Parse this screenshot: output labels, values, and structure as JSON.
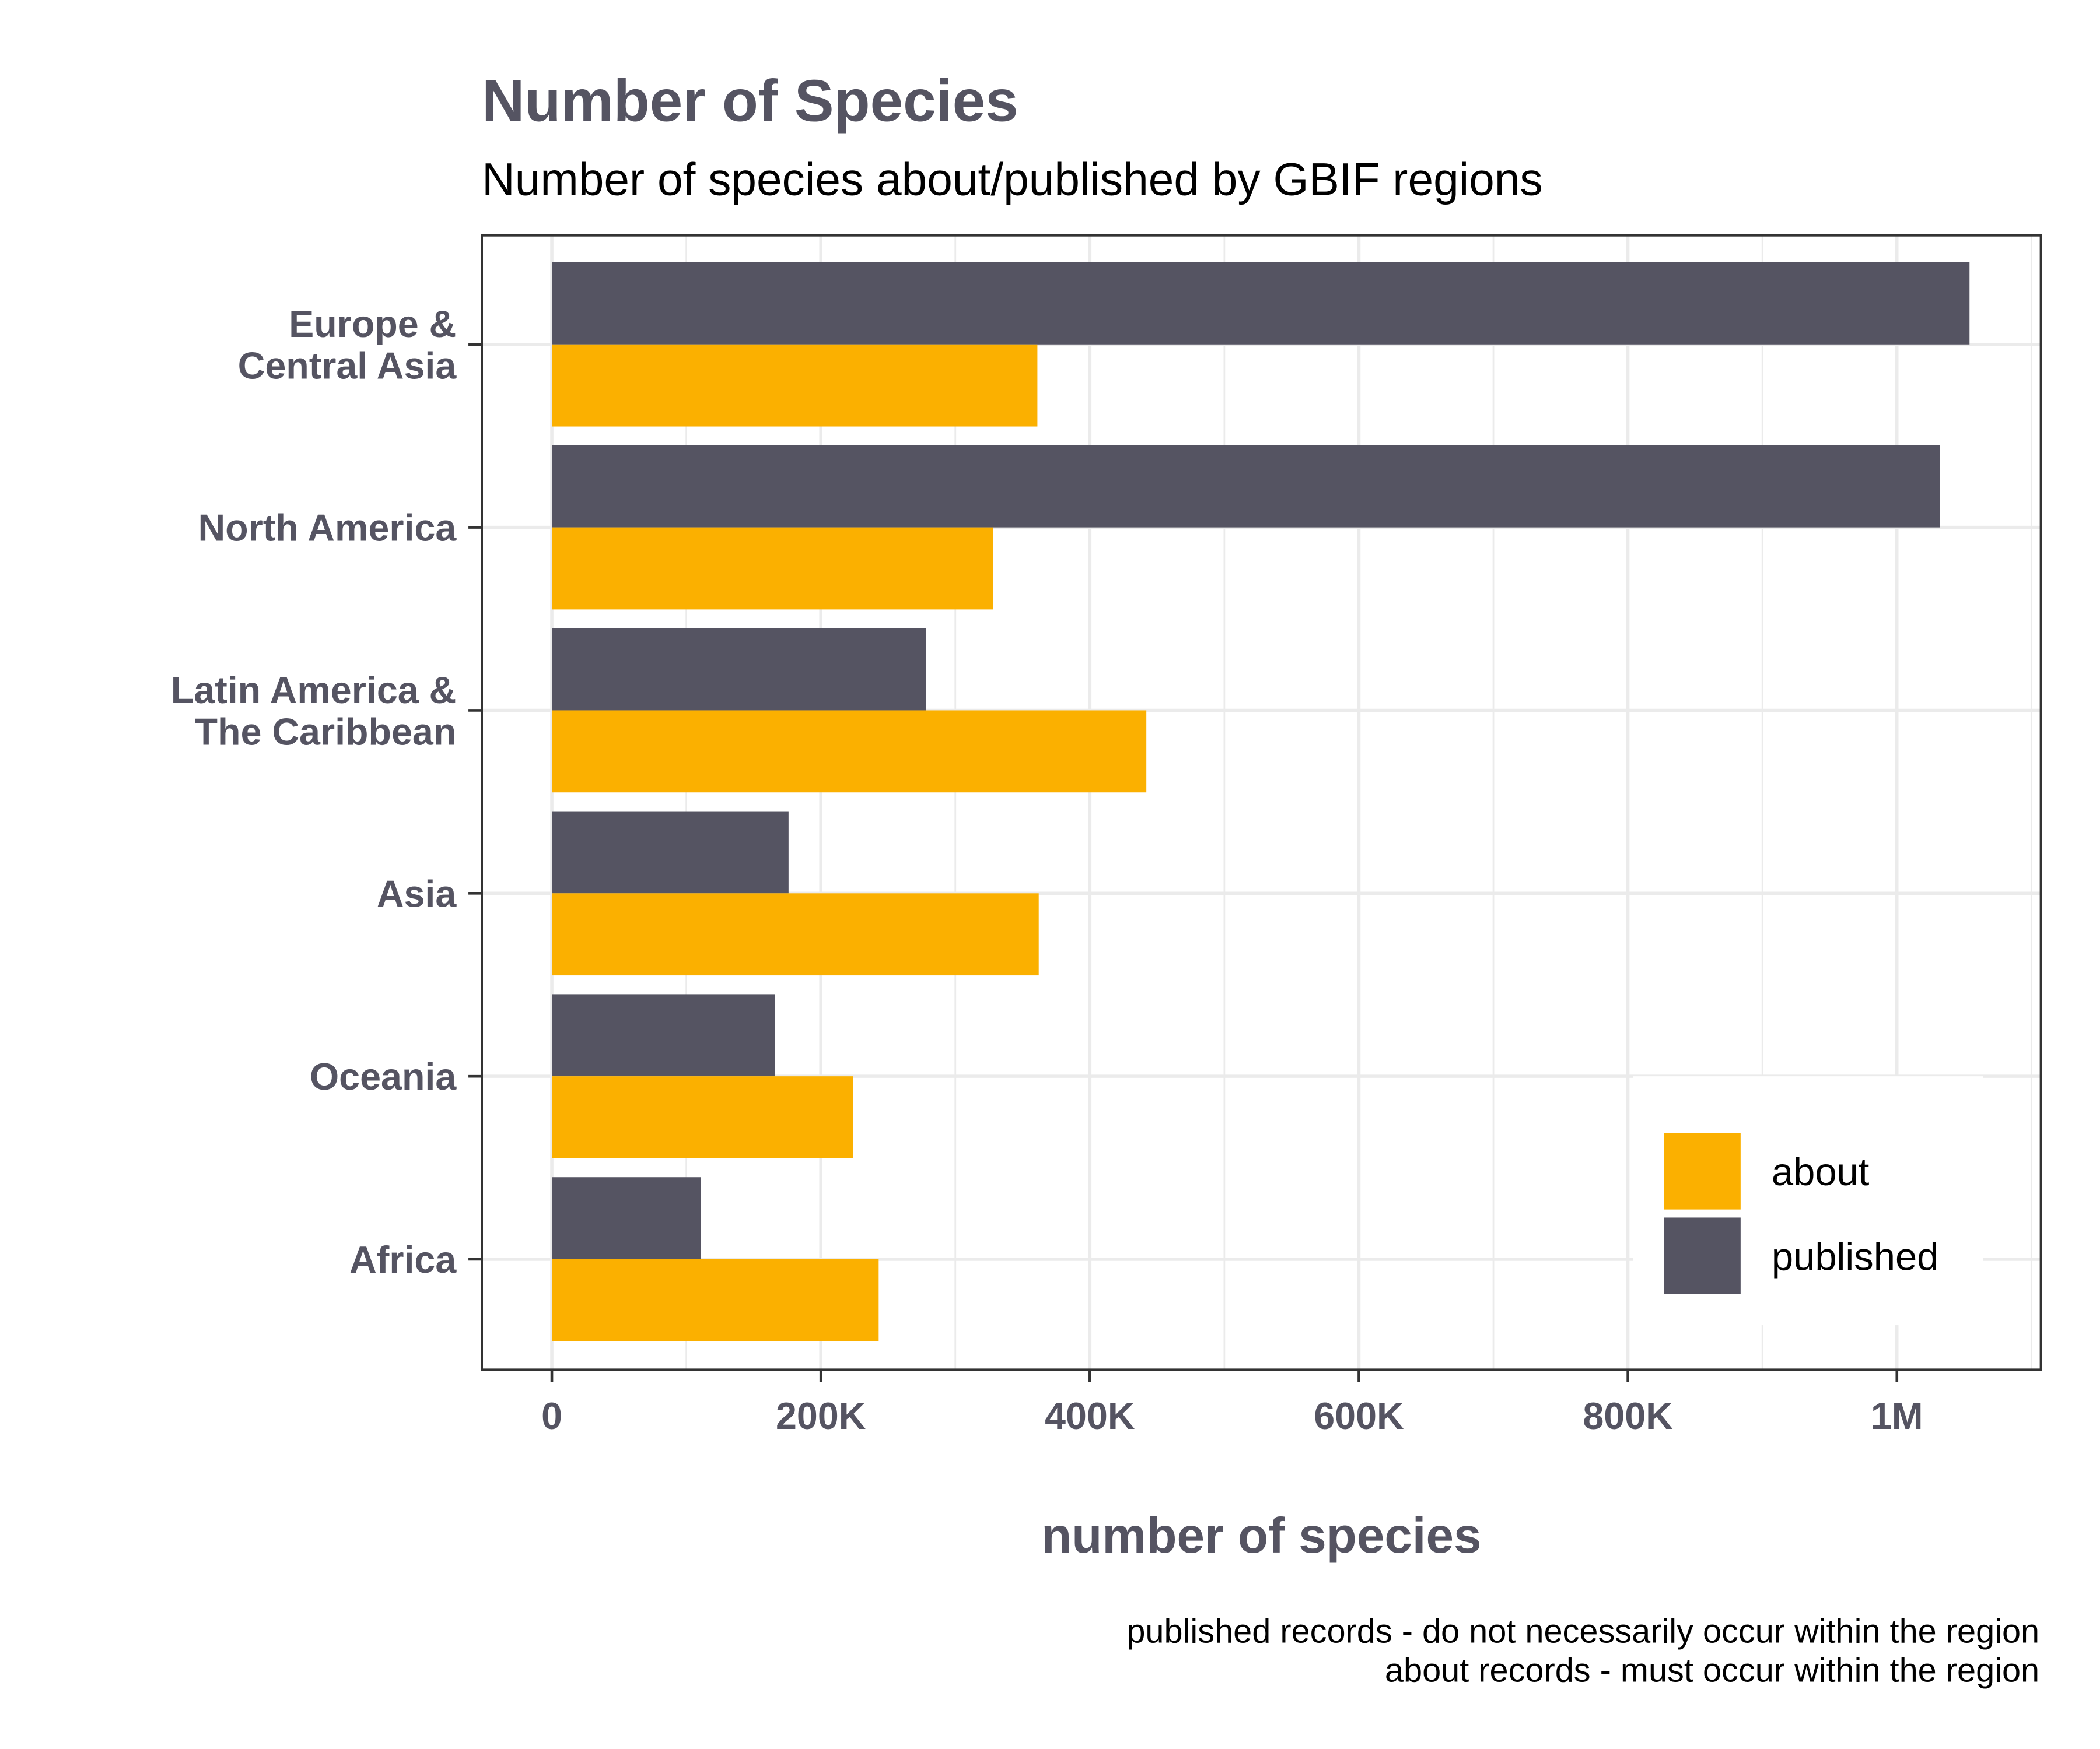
{
  "chart_data": {
    "type": "bar",
    "orientation": "horizontal",
    "title": "Number of Species",
    "subtitle": "Number of species about/published by GBIF regions",
    "xlabel": "number of species",
    "ylabel": "",
    "caption": [
      "published records - do not necessarily occur within the region",
      "about records - must occur within the region"
    ],
    "categories": [
      [
        "Europe &",
        "Central Asia"
      ],
      [
        "North America"
      ],
      [
        "Latin America &",
        "The Caribbean"
      ],
      [
        "Asia"
      ],
      [
        "Oceania"
      ],
      [
        "Africa"
      ]
    ],
    "series": [
      {
        "name": "about",
        "color": "#FBB000",
        "values": [
          361000,
          328000,
          442000,
          362000,
          224000,
          243000
        ]
      },
      {
        "name": "published",
        "color": "#555462",
        "values": [
          1054000,
          1032000,
          278000,
          176000,
          166000,
          111000
        ]
      }
    ],
    "xticks": [
      0,
      200000,
      400000,
      600000,
      800000,
      1000000
    ],
    "xtick_labels": [
      "0",
      "200K",
      "400K",
      "600K",
      "800K",
      "1M"
    ],
    "xlim": [
      -52000,
      1107000
    ],
    "grid": true,
    "legend_position": "bottom-right",
    "text_color": "#555462"
  }
}
